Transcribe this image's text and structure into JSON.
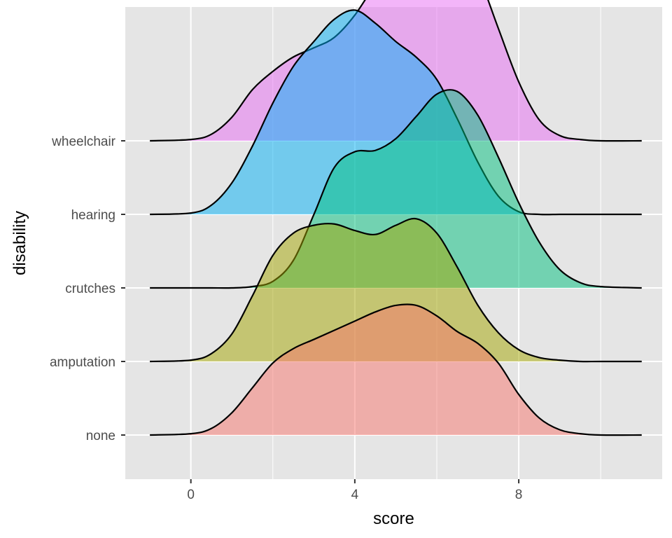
{
  "chart_data": {
    "type": "area",
    "subtype": "ridgeline-density",
    "title": "",
    "xlabel": "score",
    "ylabel": "disability",
    "xlim": [
      -1.6,
      11.5
    ],
    "x_ticks": [
      0,
      4,
      8
    ],
    "x_tick_labels": [
      "0",
      "4",
      "8"
    ],
    "grid": true,
    "background": "#e5e5e5",
    "legend": "none",
    "fill_opacity": 0.5,
    "ridge_scale": 1.78,
    "categories": [
      "none",
      "amputation",
      "crutches",
      "hearing",
      "wheelchair"
    ],
    "x": [
      -1,
      0,
      0.5,
      1,
      1.5,
      2,
      2.5,
      3,
      3.5,
      4,
      4.5,
      5,
      5.5,
      6,
      6.5,
      7,
      7.5,
      8,
      8.5,
      9,
      9.5,
      10,
      11
    ],
    "series": [
      {
        "name": "none",
        "color": "#F8766D",
        "density": [
          0,
          0.01,
          0.05,
          0.17,
          0.36,
          0.55,
          0.66,
          0.73,
          0.8,
          0.87,
          0.94,
          0.99,
          0.99,
          0.91,
          0.79,
          0.7,
          0.55,
          0.31,
          0.13,
          0.04,
          0.01,
          0,
          0
        ]
      },
      {
        "name": "amputation",
        "color": "#A3A500",
        "density": [
          0,
          0.01,
          0.06,
          0.21,
          0.5,
          0.81,
          0.98,
          1.04,
          1.05,
          1.0,
          0.97,
          1.04,
          1.09,
          0.98,
          0.72,
          0.43,
          0.22,
          0.09,
          0.03,
          0.01,
          0,
          0,
          0
        ]
      },
      {
        "name": "crutches",
        "color": "#00BF7D",
        "density": [
          0,
          0,
          0,
          0,
          0.01,
          0.05,
          0.21,
          0.56,
          0.92,
          1.04,
          1.05,
          1.14,
          1.31,
          1.48,
          1.5,
          1.32,
          1.0,
          0.65,
          0.35,
          0.14,
          0.04,
          0.01,
          0
        ]
      },
      {
        "name": "hearing",
        "color": "#00B0F6",
        "density": [
          0,
          0.01,
          0.07,
          0.24,
          0.52,
          0.85,
          1.13,
          1.32,
          1.49,
          1.56,
          1.46,
          1.32,
          1.2,
          1.03,
          0.73,
          0.4,
          0.14,
          0.02,
          0,
          0,
          0,
          0,
          0
        ]
      },
      {
        "name": "wheelchair",
        "color": "#E76BF3",
        "density": [
          0,
          0.01,
          0.05,
          0.18,
          0.39,
          0.53,
          0.64,
          0.71,
          0.79,
          0.96,
          1.2,
          1.44,
          1.62,
          1.71,
          1.58,
          1.28,
          0.86,
          0.45,
          0.16,
          0.04,
          0.01,
          0,
          0
        ]
      }
    ]
  }
}
